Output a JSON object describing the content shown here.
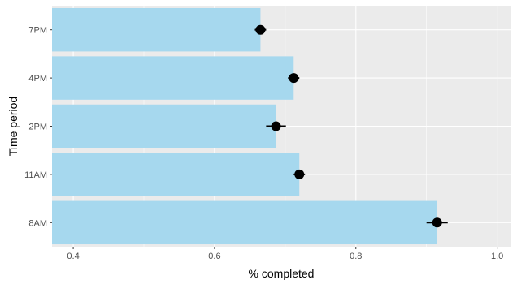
{
  "chart_data": {
    "type": "bar",
    "orientation": "horizontal",
    "xlabel": "% completed",
    "ylabel": "Time period",
    "xlim": [
      0.37,
      1.02
    ],
    "x_ticks": [
      0.4,
      0.6,
      0.8,
      1.0
    ],
    "x_tick_labels": [
      "0.4",
      "0.6",
      "0.8",
      "1.0"
    ],
    "categories": [
      "8AM",
      "11AM",
      "2PM",
      "4PM",
      "7PM"
    ],
    "values": [
      0.915,
      0.72,
      0.687,
      0.712,
      0.665
    ],
    "error_low": [
      0.9,
      0.712,
      0.673,
      0.704,
      0.657
    ],
    "error_high": [
      0.93,
      0.728,
      0.701,
      0.72,
      0.673
    ],
    "grid": true,
    "legend": "none",
    "colors": {
      "panel": "#ebebeb",
      "grid": "#ffffff",
      "bar": "#a6d8ee",
      "point": "#000000"
    }
  }
}
